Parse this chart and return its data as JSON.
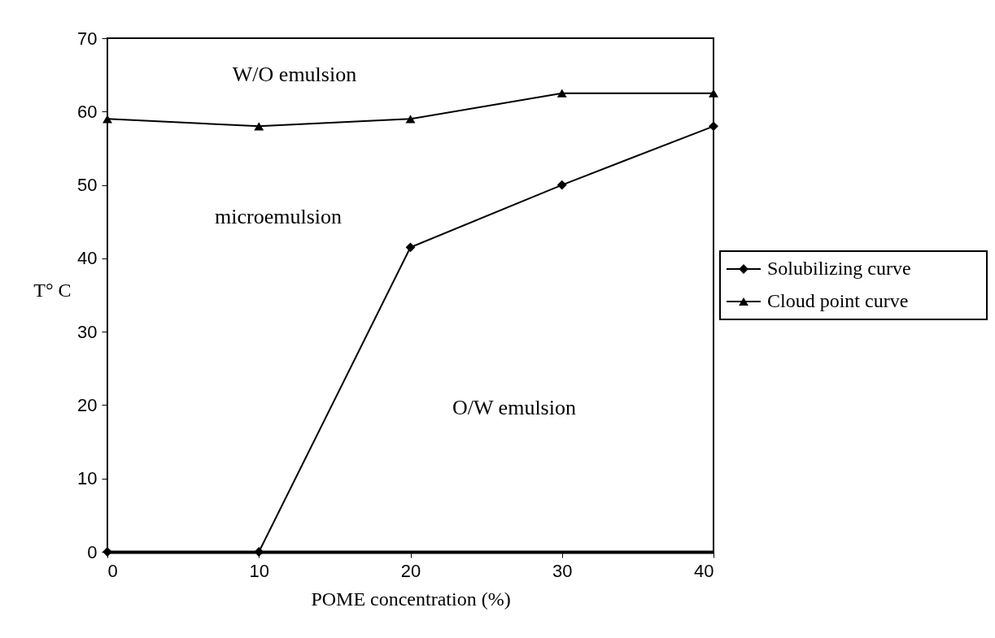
{
  "chart_data": {
    "type": "line",
    "xlabel": "POME concentration (%)",
    "ylabel": "T° C",
    "x": [
      0,
      10,
      20,
      30,
      40
    ],
    "series": [
      {
        "name": "Solubilizing curve",
        "color": "#000000",
        "marker": "diamond",
        "values": [
          0,
          0,
          41.5,
          50,
          58
        ]
      },
      {
        "name": "Cloud point curve",
        "color": "#000000",
        "marker": "triangle",
        "values": [
          59,
          58,
          59,
          62.5,
          62.5
        ]
      }
    ],
    "xlim": [
      0,
      40
    ],
    "xticks": [
      0,
      10,
      20,
      30,
      40
    ],
    "ylim": [
      0,
      70
    ],
    "yticks": [
      0,
      10,
      20,
      30,
      40,
      50,
      60,
      70
    ],
    "annotations": [
      "W/O emulsion",
      "microemulsion",
      "O/W emulsion"
    ],
    "grid": false,
    "legend": "right",
    "line_style": "solid"
  }
}
